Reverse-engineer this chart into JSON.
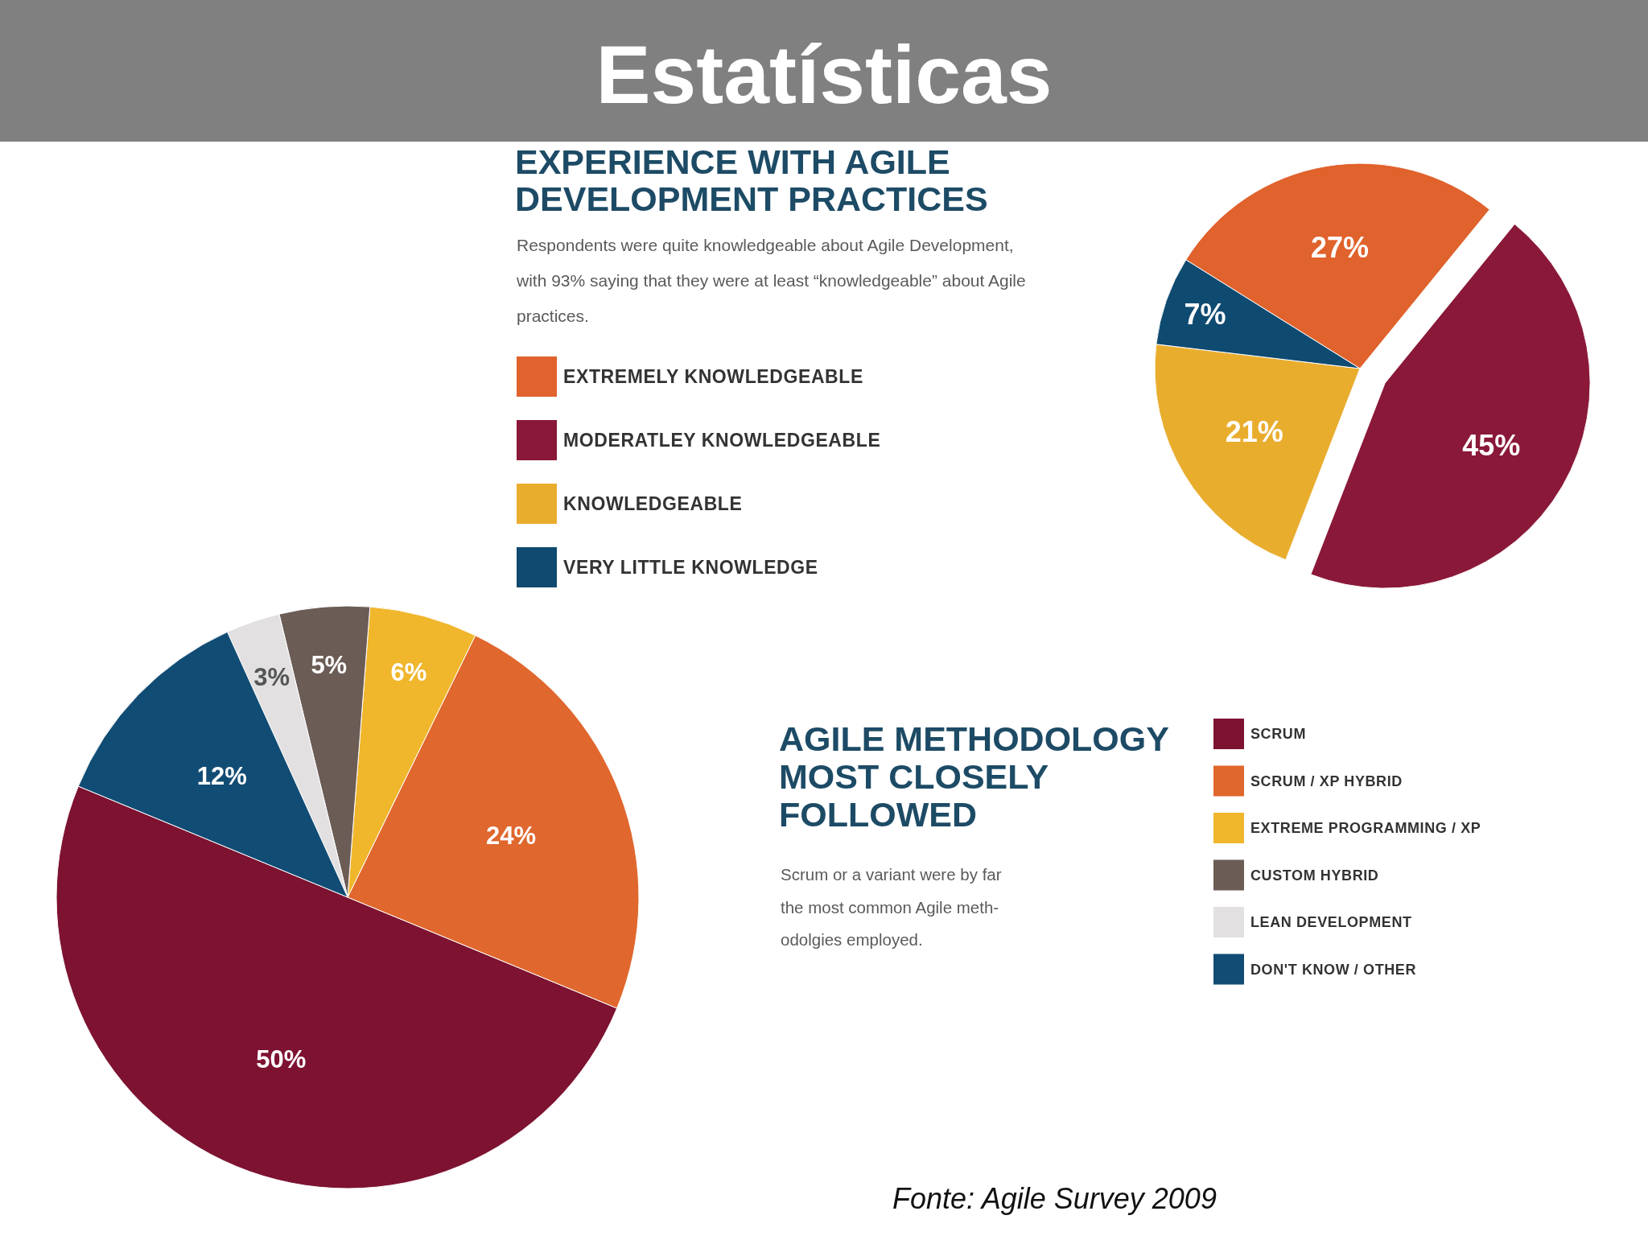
{
  "chart_data": [
    {
      "type": "pie",
      "title": "EXPERIENCE WITH AGILE\nDEVELOPMENT PRACTICES",
      "subtitle": "Respondents were quite knowledgeable about Agile Development,\nwith 93% saying that they were at least “knowledgeable” about Agile\npractices.",
      "categories": [
        "EXTREMELY KNOWLEDGEABLE",
        "MODERATLEY KNOWLEDGEABLE",
        "KNOWLEDGEABLE",
        "VERY LITTLE KNOWLEDGE"
      ],
      "values": [
        27,
        45,
        21,
        7
      ],
      "colors": [
        "#e0622c",
        "#8a1838",
        "#e9ad2e",
        "#0f4a70"
      ],
      "value_labels": [
        "27%",
        "45%",
        "21%",
        "7%"
      ],
      "legend": "left",
      "annotations": [
        "Estatísticas"
      ]
    },
    {
      "type": "pie",
      "title": "AGILE METHODOLOGY\nMOST CLOSELY\nFOLLOWED",
      "subtitle": "Scrum or a variant were by far\nthe most common Agile meth-\nodolgies employed.",
      "categories": [
        "SCRUM",
        "SCRUM / XP HYBRID",
        "EXTREME PROGRAMMING / XP",
        "CUSTOM HYBRID",
        "LEAN DEVELOPMENT",
        "DON'T KNOW / OTHER"
      ],
      "values": [
        50,
        24,
        6,
        5,
        3,
        12
      ],
      "colors": [
        "#7d1231",
        "#e0672d",
        "#f0b62c",
        "#6b5c56",
        "#e2e0e0",
        "#114c74"
      ],
      "value_labels": [
        "50%",
        "24%",
        "6%",
        "5%",
        "3%",
        "12%"
      ],
      "legend": "right",
      "annotations": [
        "Fonte: Agile Survey 2009"
      ]
    }
  ]
}
